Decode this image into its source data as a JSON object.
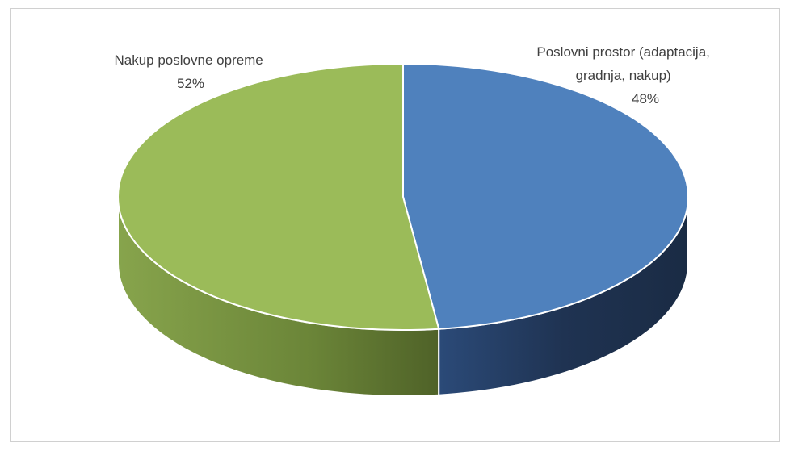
{
  "chart_data": {
    "type": "pie",
    "title": "",
    "slices": [
      {
        "label_lines": [
          "Poslovni prostor (adaptacija,",
          "gradnja, nakup)"
        ],
        "value": 48,
        "percent_label": "48%",
        "color": "#4F81BD",
        "side_color": "#1F3150"
      },
      {
        "label_lines": [
          "Nakup poslovne opreme"
        ],
        "value": 52,
        "percent_label": "52%",
        "color": "#9BBB59",
        "side_color": "#5E7233"
      }
    ],
    "style": "3d-pie",
    "legend": "none"
  }
}
